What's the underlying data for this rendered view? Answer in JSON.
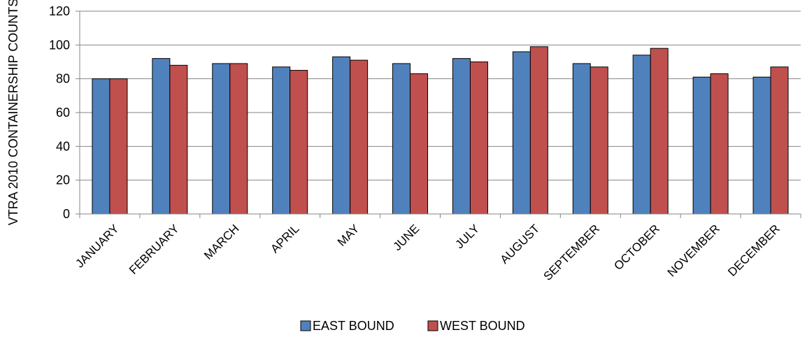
{
  "chart_data": {
    "type": "bar",
    "title": "",
    "xlabel": "",
    "ylabel": "VTRA 2010 CONTAINERSHIP COUNTS",
    "ylim": [
      0,
      120
    ],
    "yticks": [
      0,
      20,
      40,
      60,
      80,
      100,
      120
    ],
    "grid": true,
    "legend_position": "bottom",
    "categories": [
      "JANUARY",
      "FEBRUARY",
      "MARCH",
      "APRIL",
      "MAY",
      "JUNE",
      "JULY",
      "AUGUST",
      "SEPTEMBER",
      "OCTOBER",
      "NOVEMBER",
      "DECEMBER"
    ],
    "series": [
      {
        "name": "EAST BOUND",
        "color": "#4f81bd",
        "values": [
          80,
          92,
          89,
          87,
          93,
          89,
          92,
          96,
          89,
          94,
          81,
          81
        ]
      },
      {
        "name": "WEST BOUND",
        "color": "#c0504d",
        "values": [
          80,
          88,
          89,
          85,
          91,
          83,
          90,
          99,
          87,
          98,
          83,
          87
        ]
      }
    ]
  }
}
